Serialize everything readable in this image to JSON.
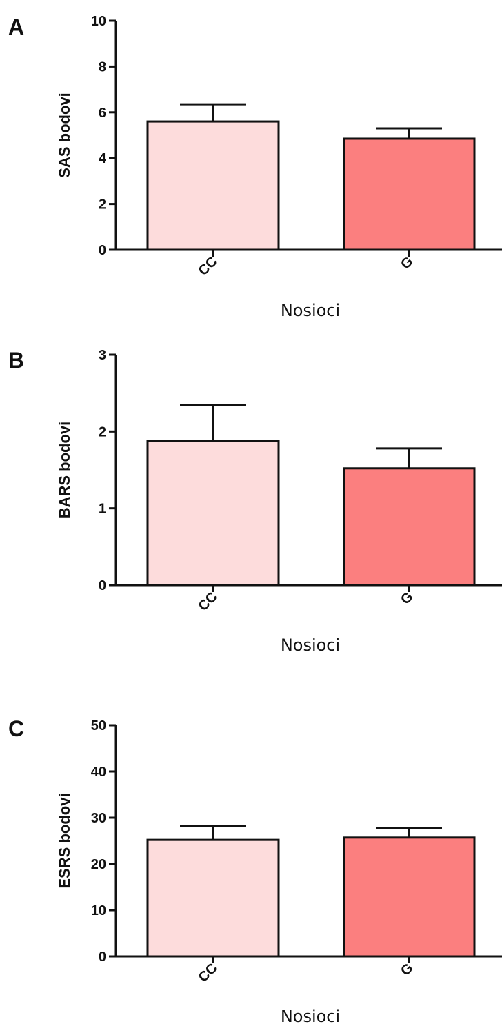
{
  "chart_data": [
    {
      "type": "bar",
      "panel": "A",
      "categories": [
        "CC",
        "G"
      ],
      "values": [
        5.6,
        4.85
      ],
      "error": [
        0.75,
        0.45
      ],
      "colors": [
        "#fddcdc",
        "#fb7f7f"
      ],
      "xlabel": "Nosioci",
      "ylabel": "SAS bodovi",
      "ylim": [
        0,
        10
      ],
      "yticks": [
        0,
        2,
        4,
        6,
        8,
        10
      ],
      "grid": false
    },
    {
      "type": "bar",
      "panel": "B",
      "categories": [
        "CC",
        "G"
      ],
      "values": [
        1.88,
        1.52
      ],
      "error": [
        0.46,
        0.26
      ],
      "colors": [
        "#fddcdc",
        "#fb7f7f"
      ],
      "xlabel": "Nosioci",
      "ylabel": "BARS bodovi",
      "ylim": [
        0,
        3
      ],
      "yticks": [
        0,
        1,
        2,
        3
      ],
      "grid": false
    },
    {
      "type": "bar",
      "panel": "C",
      "categories": [
        "CC",
        "G"
      ],
      "values": [
        25.2,
        25.7
      ],
      "error": [
        3.0,
        2.0
      ],
      "colors": [
        "#fddcdc",
        "#fb7f7f"
      ],
      "xlabel": "Nosioci",
      "ylabel": "ESRS bodovi",
      "ylim": [
        0,
        50
      ],
      "yticks": [
        0,
        10,
        20,
        30,
        40,
        50
      ],
      "grid": false
    }
  ]
}
